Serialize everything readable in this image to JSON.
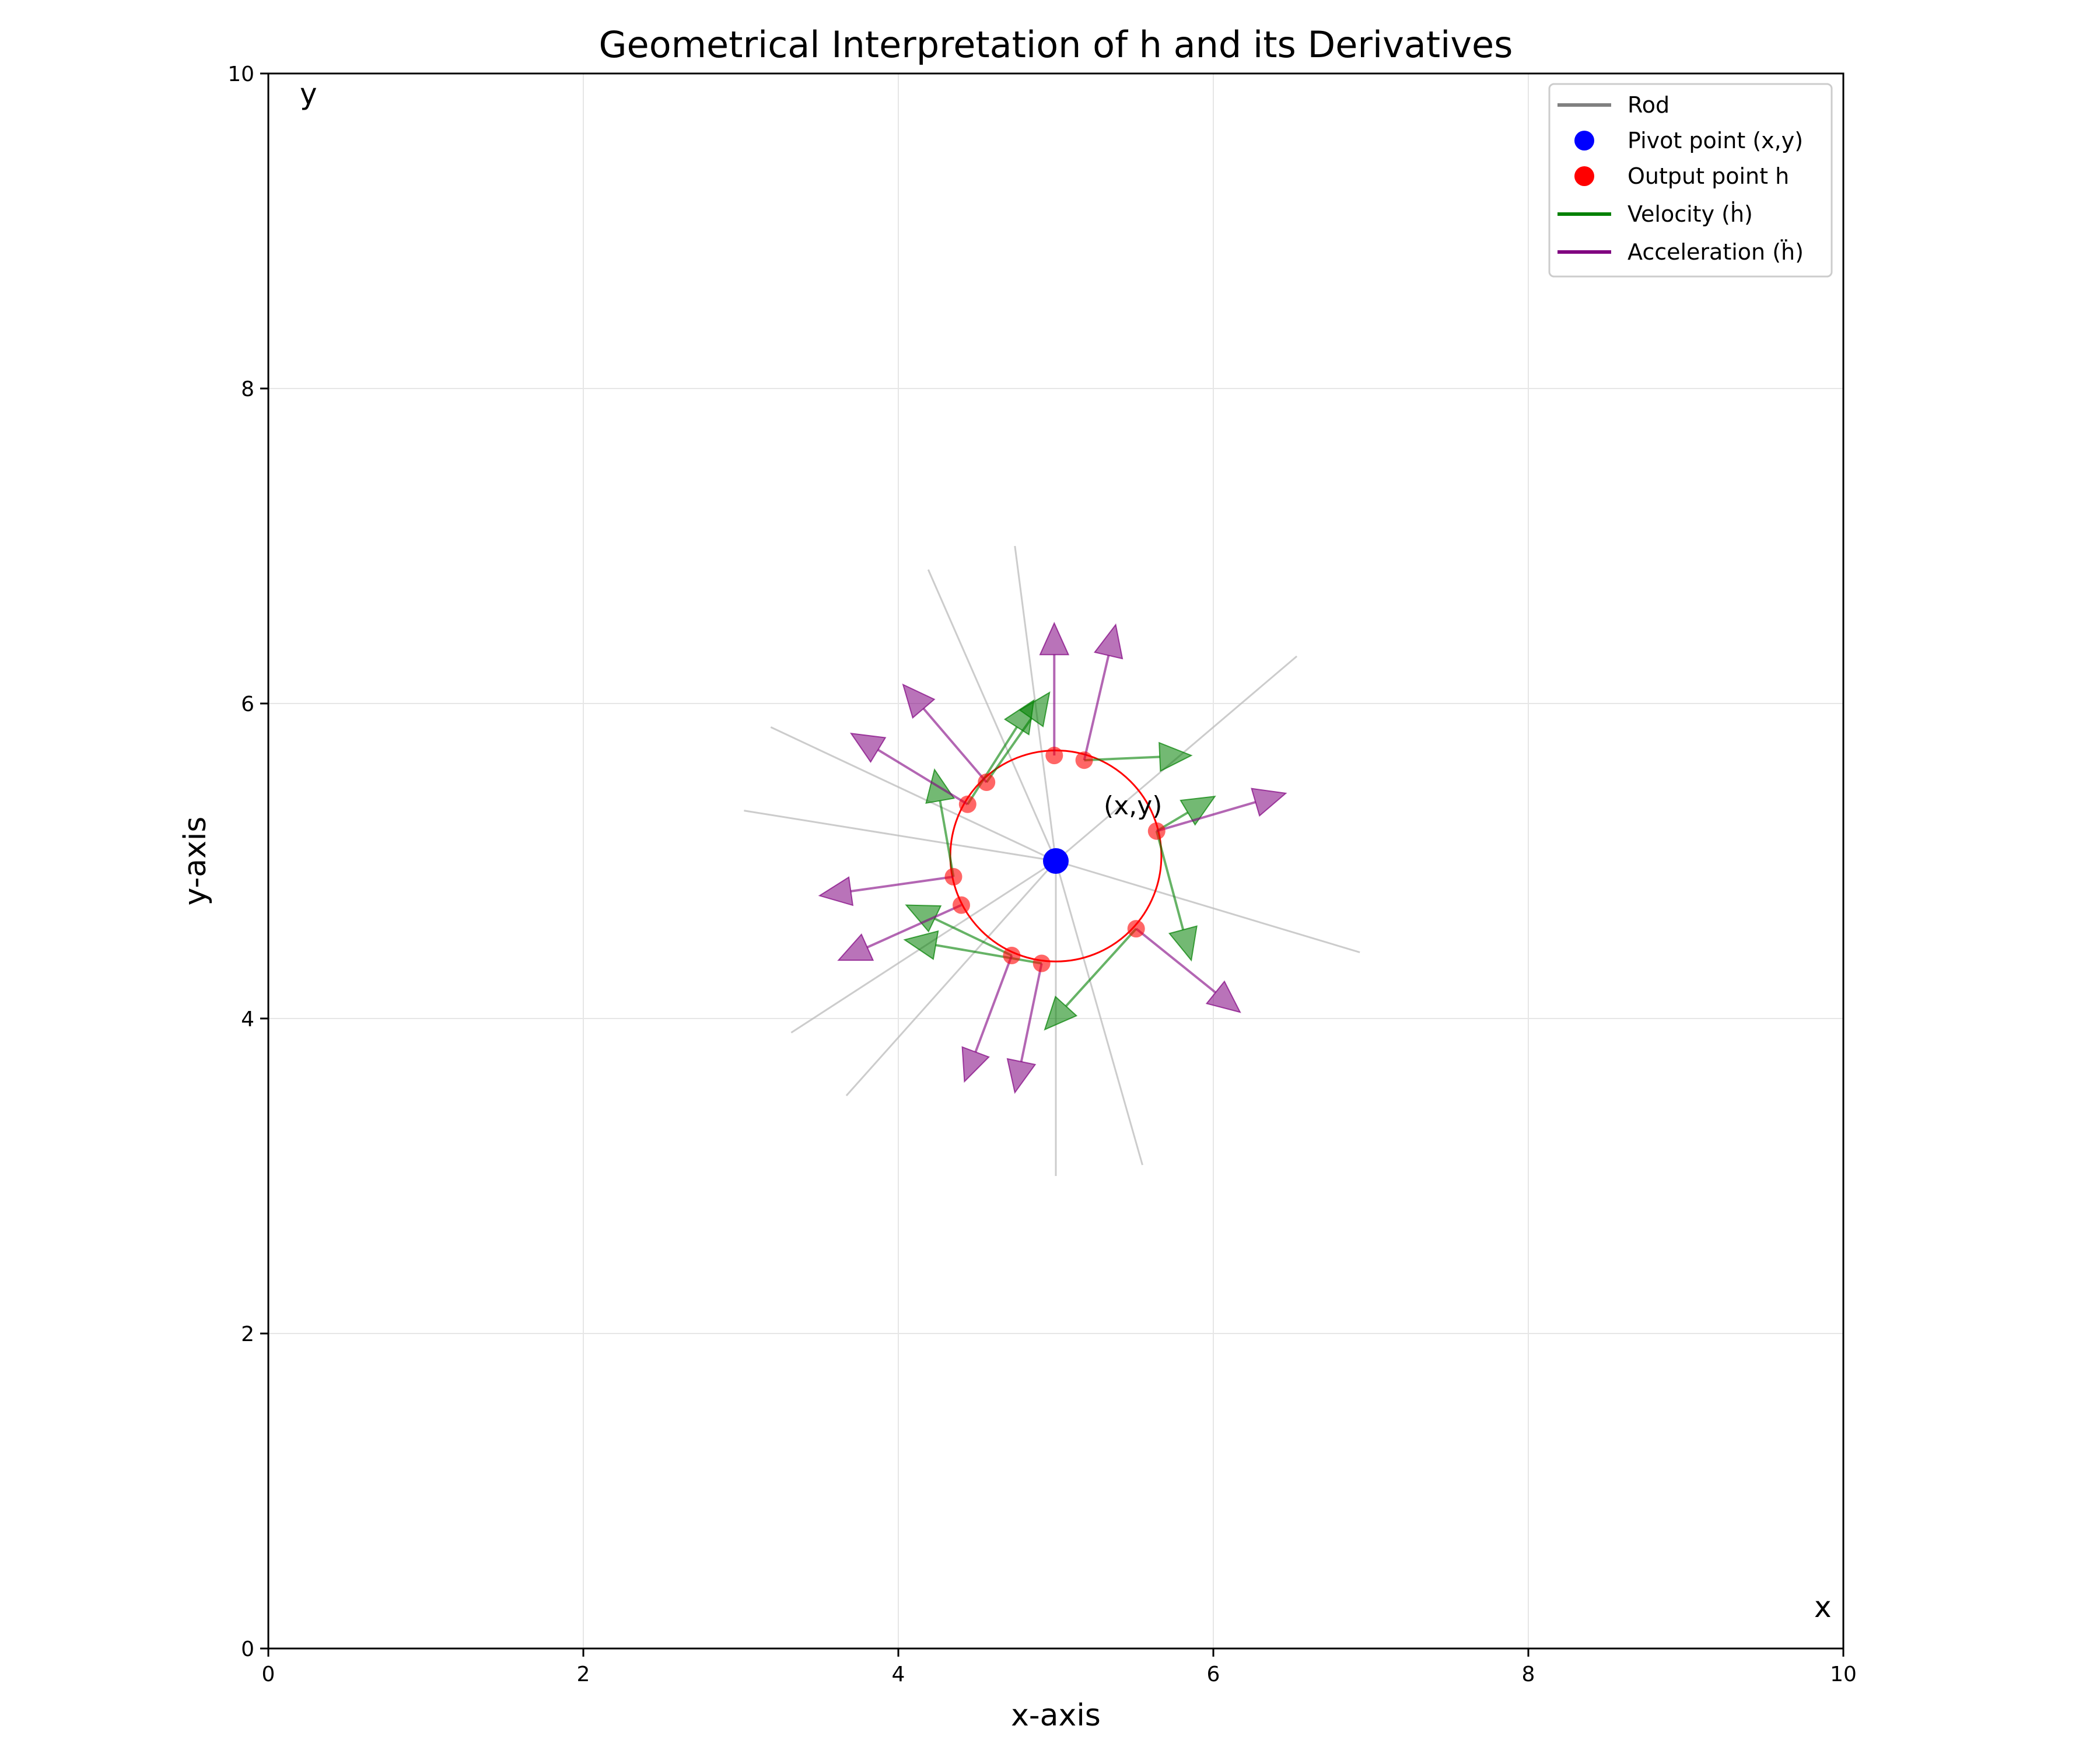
{
  "chart_data": {
    "type": "scatter",
    "title": "Geometrical Interpretation of h and its Derivatives",
    "xlabel": "x-axis",
    "ylabel": "y-axis",
    "xlim": [
      0,
      10
    ],
    "ylim": [
      0,
      10
    ],
    "xticks": [
      "0",
      "2",
      "4",
      "6",
      "8",
      "10"
    ],
    "yticks": [
      "0",
      "2",
      "4",
      "6",
      "8",
      "10"
    ],
    "grid": true,
    "corner_labels": {
      "top_left": "y",
      "bottom_right": "x"
    },
    "pivot": {
      "x": 5.0,
      "y": 5.0,
      "label": "(x,y)"
    },
    "trajectory_radius": 0.67,
    "legend": {
      "position": "top-right",
      "entries": [
        {
          "key": "rod",
          "label": "Rod",
          "kind": "line",
          "color": "#808080"
        },
        {
          "key": "pivot",
          "label": "Pivot point (x,y)",
          "kind": "marker",
          "color": "#0000ff"
        },
        {
          "key": "output",
          "label": "Output point h",
          "kind": "marker",
          "color": "#ff0000"
        },
        {
          "key": "velocity",
          "label": "Velocity (ḣ)",
          "kind": "line",
          "color": "#008000"
        },
        {
          "key": "acceleration",
          "label": "Acceleration (ḧ)",
          "kind": "line",
          "color": "#800080"
        }
      ]
    },
    "colors": {
      "rod": "#bbbbbb",
      "pivot": "#0000ff",
      "output": "#ff0000",
      "trajectory": "#ff0000",
      "velocity": "#008000",
      "acceleration": "#800080",
      "grid": "#e6e6e6"
    },
    "rods": [
      [
        6.53,
        6.3
      ],
      [
        4.74,
        7.0
      ],
      [
        4.19,
        6.85
      ],
      [
        3.19,
        5.85
      ],
      [
        3.02,
        5.32
      ],
      [
        6.93,
        4.42
      ],
      [
        3.32,
        3.91
      ],
      [
        3.67,
        3.51
      ],
      [
        5.0,
        3.0
      ],
      [
        5.55,
        3.07
      ]
    ],
    "points": [
      {
        "x": 4.99,
        "y": 5.67,
        "vx": 0.0,
        "vy": 0.0,
        "ax": 0.0,
        "ay": 0.84
      },
      {
        "x": 5.18,
        "y": 5.64,
        "vx": 0.68,
        "vy": 0.03,
        "ax": 0.2,
        "ay": 0.86
      },
      {
        "x": 4.56,
        "y": 5.5,
        "vx": 0.4,
        "vy": 0.57,
        "ax": -0.53,
        "ay": 0.62
      },
      {
        "x": 4.44,
        "y": 5.36,
        "vx": 0.42,
        "vy": 0.66,
        "ax": -0.74,
        "ay": 0.45
      },
      {
        "x": 5.64,
        "y": 5.19,
        "vx": 0.37,
        "vy": 0.22,
        "ax": 0.82,
        "ay": 0.24
      },
      {
        "x": 4.35,
        "y": 4.9,
        "vx": -0.12,
        "vy": 0.68,
        "ax": -0.85,
        "ay": -0.12
      },
      {
        "x": 4.4,
        "y": 4.72,
        "vx": 0.0,
        "vy": 0.0,
        "ax": -0.78,
        "ay": -0.35
      },
      {
        "x": 4.72,
        "y": 4.4,
        "vx": -0.67,
        "vy": 0.32,
        "ax": 0.0,
        "ay": 0.0
      },
      {
        "x": 4.91,
        "y": 4.35,
        "vx": -0.87,
        "vy": 0.15,
        "ax": -0.17,
        "ay": -0.82
      },
      {
        "x": 5.51,
        "y": 4.57,
        "vx": -0.58,
        "vy": -0.64,
        "ax": 0.0,
        "ay": 0.0
      }
    ],
    "extra_velocity_arrows": [
      {
        "x": 4.72,
        "y": 4.4,
        "vx": 0.0,
        "vy": 0.0
      },
      {
        "x": 5.64,
        "y": 5.19,
        "vx": 0.22,
        "vy": -0.82
      }
    ],
    "extra_acceleration_arrows": [
      {
        "x": 4.72,
        "y": 4.4,
        "ax": -0.3,
        "ay": -0.8
      },
      {
        "x": 5.51,
        "y": 4.57,
        "ax": 0.66,
        "ay": -0.53
      }
    ]
  }
}
